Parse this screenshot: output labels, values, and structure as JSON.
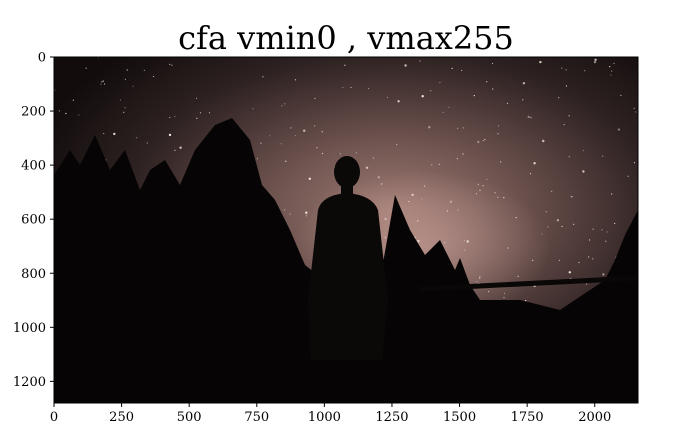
{
  "chart_data": {
    "type": "image",
    "title": "cfa vmin0 , vmax255",
    "xlabel": "",
    "ylabel": "",
    "xlim": [
      0,
      2160
    ],
    "ylim": [
      1280,
      0
    ],
    "x_ticks": [
      0,
      250,
      500,
      750,
      1000,
      1250,
      1500,
      1750,
      2000
    ],
    "y_ticks": [
      0,
      200,
      400,
      600,
      800,
      1000,
      1200
    ],
    "grid": false,
    "image_content": "night sky with milky way over silhouetted trees and a standing person",
    "colors": {
      "sky_glow": "#8a6a64",
      "sky_dark": "#2a1e1e",
      "silhouette": "#050303"
    }
  }
}
